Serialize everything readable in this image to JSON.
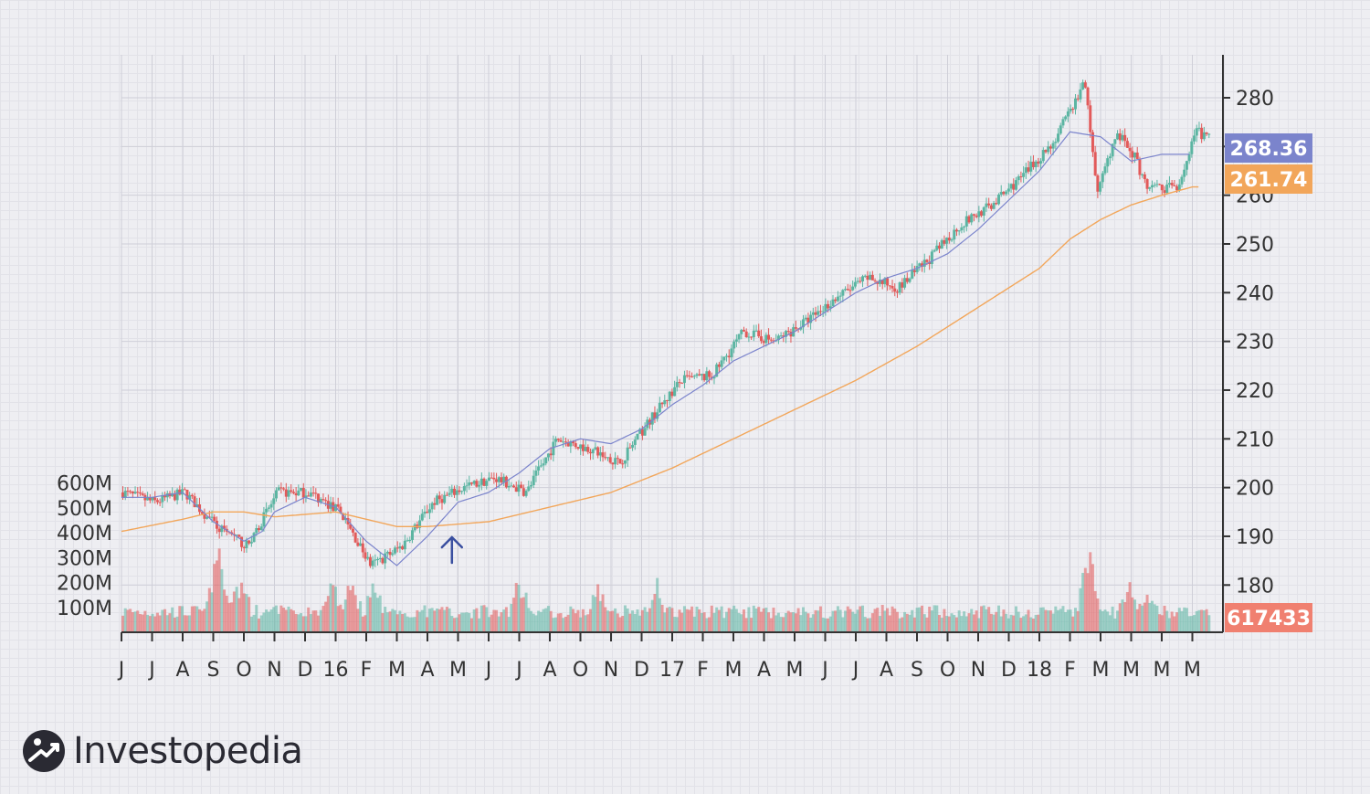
{
  "chart_data": {
    "type": "candlestick",
    "title": "",
    "xlabel": "",
    "ylabel": "",
    "price_axis": {
      "ticks": [
        180,
        190,
        200,
        210,
        220,
        230,
        240,
        250,
        260,
        270,
        280
      ],
      "ylim": [
        173,
        290
      ],
      "position": "right"
    },
    "volume_axis": {
      "ticks": [
        "100M",
        "200M",
        "300M",
        "400M",
        "500M",
        "600M"
      ],
      "values": [
        100,
        200,
        300,
        400,
        500,
        600
      ],
      "position": "left"
    },
    "months": [
      "J",
      "J",
      "A",
      "S",
      "O",
      "N",
      "D",
      "16",
      "F",
      "M",
      "A",
      "M",
      "J",
      "J",
      "A",
      "O",
      "N",
      "D",
      "17",
      "F",
      "M",
      "A",
      "M",
      "J",
      "J",
      "A",
      "S",
      "O",
      "N",
      "D",
      "18",
      "F",
      "M",
      "M",
      "M",
      "M"
    ],
    "price_anchors": [
      [
        0,
        199
      ],
      [
        1,
        197
      ],
      [
        2,
        199
      ],
      [
        3,
        192
      ],
      [
        4,
        188
      ],
      [
        5,
        199
      ],
      [
        6,
        199
      ],
      [
        7,
        195
      ],
      [
        8,
        184
      ],
      [
        9,
        188
      ],
      [
        10,
        197
      ],
      [
        11,
        200
      ],
      [
        12,
        202
      ],
      [
        13,
        199
      ],
      [
        14,
        210
      ],
      [
        15,
        208
      ],
      [
        16,
        205
      ],
      [
        17,
        214
      ],
      [
        18,
        222
      ],
      [
        19,
        223
      ],
      [
        20,
        232
      ],
      [
        21,
        230
      ],
      [
        22,
        234
      ],
      [
        23,
        239
      ],
      [
        24,
        243
      ],
      [
        25,
        241
      ],
      [
        26,
        247
      ],
      [
        27,
        254
      ],
      [
        28,
        258
      ],
      [
        29,
        264
      ],
      [
        30,
        271
      ],
      [
        31,
        283
      ],
      [
        31.4,
        260
      ],
      [
        32,
        273
      ],
      [
        32.6,
        268
      ],
      [
        33,
        261
      ],
      [
        34,
        262
      ],
      [
        34.6,
        273
      ],
      [
        35,
        272
      ]
    ],
    "ma_short_anchors": [
      [
        0,
        198
      ],
      [
        1,
        198
      ],
      [
        2,
        199
      ],
      [
        3,
        193
      ],
      [
        4,
        189
      ],
      [
        4.6,
        191
      ],
      [
        5,
        195
      ],
      [
        6,
        198
      ],
      [
        7,
        196
      ],
      [
        8,
        189
      ],
      [
        9,
        184
      ],
      [
        10,
        190
      ],
      [
        11,
        197
      ],
      [
        12,
        199
      ],
      [
        13,
        203
      ],
      [
        14,
        208
      ],
      [
        15,
        210
      ],
      [
        16,
        209
      ],
      [
        17,
        212
      ],
      [
        18,
        217
      ],
      [
        19,
        221
      ],
      [
        20,
        226
      ],
      [
        21,
        229
      ],
      [
        22,
        232
      ],
      [
        23,
        236
      ],
      [
        24,
        240
      ],
      [
        25,
        243
      ],
      [
        26,
        245
      ],
      [
        27,
        248
      ],
      [
        28,
        253
      ],
      [
        29,
        259
      ],
      [
        30,
        265
      ],
      [
        31,
        273
      ],
      [
        32,
        272
      ],
      [
        33,
        267
      ],
      [
        34,
        268.4
      ],
      [
        35,
        268.4
      ]
    ],
    "ma_long_anchors": [
      [
        0,
        191
      ],
      [
        2,
        193.5
      ],
      [
        3,
        195
      ],
      [
        4,
        195
      ],
      [
        5,
        194
      ],
      [
        7,
        195
      ],
      [
        9,
        192
      ],
      [
        10,
        192
      ],
      [
        12,
        193
      ],
      [
        14,
        196
      ],
      [
        16,
        199
      ],
      [
        18,
        204
      ],
      [
        20,
        210
      ],
      [
        22,
        216
      ],
      [
        24,
        222
      ],
      [
        26,
        229
      ],
      [
        28,
        237
      ],
      [
        30,
        245
      ],
      [
        31,
        251
      ],
      [
        32,
        255
      ],
      [
        33,
        258
      ],
      [
        34,
        260
      ],
      [
        35,
        261.7
      ]
    ],
    "volume_hotspots": [
      [
        3,
        200
      ],
      [
        3.2,
        170
      ],
      [
        3.8,
        180
      ],
      [
        6.8,
        140
      ],
      [
        7.4,
        160
      ],
      [
        8.1,
        120
      ],
      [
        12.8,
        170
      ],
      [
        15.3,
        120
      ],
      [
        17.2,
        130
      ],
      [
        31.1,
        320
      ],
      [
        32.4,
        120
      ],
      [
        33,
        100
      ]
    ],
    "arrow_marker_month": 10.8,
    "current_price_label": "268.36",
    "moving_average_label": "261.74",
    "volume_label": "617433",
    "colors": {
      "up": "#5bb5a2",
      "down": "#e25a5a",
      "ma_short": "#7b84cc",
      "ma_long": "#f2a65a",
      "badge_price": "#7b84cc",
      "badge_ma": "#f2a65a",
      "badge_volume": "#f08070",
      "arrow": "#3a4fa0",
      "axis": "#333333"
    }
  },
  "logo": {
    "text": "Investopedia",
    "icon": "investopedia-logo-icon"
  }
}
